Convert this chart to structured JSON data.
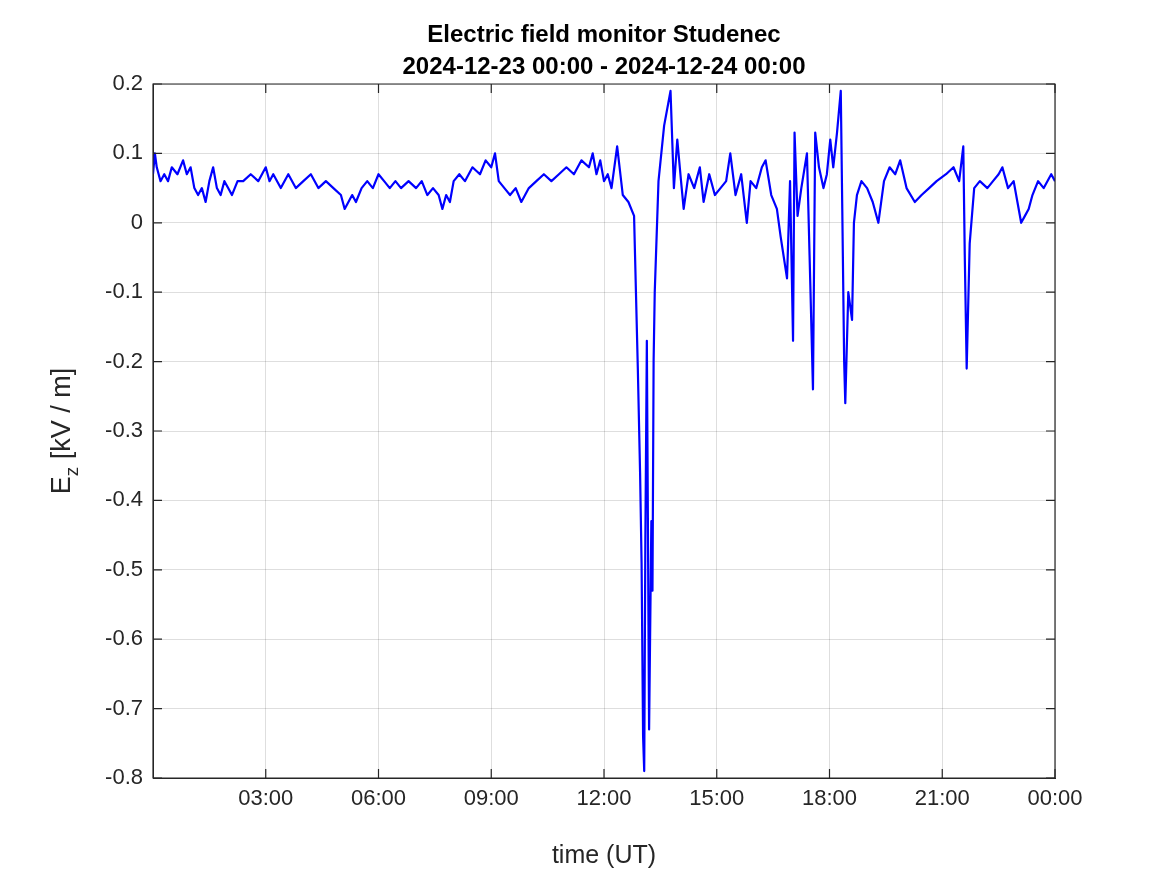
{
  "chart_data": {
    "type": "line",
    "title": "Electric field monitor Studenec",
    "subtitle": "2024-12-23 00:00 - 2024-12-24 00:00",
    "xlabel": "time (UT)",
    "ylabel": "E$_{z}$ [kV / m]",
    "x": [
      0,
      0.05,
      0.1,
      0.2,
      0.3,
      0.4,
      0.5,
      0.65,
      0.8,
      0.9,
      1.0,
      1.1,
      1.2,
      1.3,
      1.4,
      1.5,
      1.6,
      1.7,
      1.8,
      1.9,
      2.0,
      2.1,
      2.25,
      2.4,
      2.6,
      2.8,
      3.0,
      3.1,
      3.2,
      3.4,
      3.6,
      3.8,
      4.0,
      4.2,
      4.4,
      4.6,
      4.8,
      5.0,
      5.1,
      5.2,
      5.3,
      5.4,
      5.55,
      5.7,
      5.85,
      6.0,
      6.15,
      6.3,
      6.45,
      6.6,
      6.8,
      7.0,
      7.15,
      7.3,
      7.45,
      7.6,
      7.7,
      7.8,
      7.9,
      8.0,
      8.15,
      8.3,
      8.5,
      8.7,
      8.85,
      9.0,
      9.1,
      9.2,
      9.35,
      9.5,
      9.65,
      9.8,
      9.9,
      10.0,
      10.2,
      10.4,
      10.6,
      10.8,
      11.0,
      11.2,
      11.4,
      11.6,
      11.7,
      11.8,
      11.9,
      12.0,
      12.1,
      12.2,
      12.35,
      12.5,
      12.65,
      12.8,
      12.9,
      12.96,
      13.0,
      13.04,
      13.07,
      13.1,
      13.14,
      13.2,
      13.26,
      13.29,
      13.32,
      13.35,
      13.45,
      13.6,
      13.77,
      13.86,
      13.95,
      14.05,
      14.12,
      14.25,
      14.4,
      14.55,
      14.65,
      14.8,
      14.95,
      15.1,
      15.25,
      15.36,
      15.5,
      15.65,
      15.8,
      15.9,
      16.05,
      16.2,
      16.3,
      16.45,
      16.6,
      16.7,
      16.87,
      16.95,
      17.03,
      17.07,
      17.15,
      17.25,
      17.4,
      17.49,
      17.56,
      17.62,
      17.72,
      17.84,
      17.93,
      18.02,
      18.1,
      18.2,
      18.3,
      18.34,
      18.39,
      18.42,
      18.5,
      18.6,
      18.65,
      18.73,
      18.85,
      19.0,
      19.15,
      19.3,
      19.45,
      19.6,
      19.75,
      19.88,
      20.05,
      20.27,
      20.45,
      20.65,
      20.85,
      21.1,
      21.3,
      21.45,
      21.56,
      21.6,
      21.65,
      21.73,
      21.85,
      22.0,
      22.2,
      22.35,
      22.5,
      22.6,
      22.75,
      22.9,
      23.0,
      23.1,
      23.2,
      23.3,
      23.4,
      23.55,
      23.7,
      23.9,
      24
    ],
    "series": [
      {
        "color": "#0000ff",
        "values": [
          0.07,
          0.1,
          0.08,
          0.06,
          0.07,
          0.06,
          0.08,
          0.07,
          0.09,
          0.07,
          0.08,
          0.05,
          0.04,
          0.05,
          0.03,
          0.06,
          0.08,
          0.05,
          0.04,
          0.06,
          0.05,
          0.04,
          0.06,
          0.06,
          0.07,
          0.06,
          0.08,
          0.06,
          0.07,
          0.05,
          0.07,
          0.05,
          0.06,
          0.07,
          0.05,
          0.06,
          0.05,
          0.04,
          0.02,
          0.03,
          0.04,
          0.03,
          0.05,
          0.06,
          0.05,
          0.07,
          0.06,
          0.05,
          0.06,
          0.05,
          0.06,
          0.05,
          0.06,
          0.04,
          0.05,
          0.04,
          0.02,
          0.04,
          0.03,
          0.06,
          0.07,
          0.06,
          0.08,
          0.07,
          0.09,
          0.08,
          0.1,
          0.06,
          0.05,
          0.04,
          0.05,
          0.03,
          0.04,
          0.05,
          0.06,
          0.07,
          0.06,
          0.07,
          0.08,
          0.07,
          0.09,
          0.08,
          0.1,
          0.07,
          0.09,
          0.06,
          0.07,
          0.05,
          0.11,
          0.04,
          0.03,
          0.01,
          -0.21,
          -0.36,
          -0.49,
          -0.74,
          -0.79,
          -0.46,
          -0.17,
          -0.73,
          -0.43,
          -0.53,
          -0.2,
          -0.1,
          0.06,
          0.14,
          0.19,
          0.05,
          0.12,
          0.06,
          0.02,
          0.07,
          0.05,
          0.08,
          0.03,
          0.07,
          0.04,
          0.05,
          0.06,
          0.1,
          0.04,
          0.07,
          0.0,
          0.06,
          0.05,
          0.08,
          0.09,
          0.04,
          0.02,
          -0.02,
          -0.08,
          0.06,
          -0.17,
          0.13,
          0.01,
          0.05,
          0.1,
          -0.09,
          -0.24,
          0.13,
          0.08,
          0.05,
          0.07,
          0.12,
          0.08,
          0.13,
          0.19,
          0.02,
          -0.2,
          -0.26,
          -0.1,
          -0.14,
          0.0,
          0.04,
          0.06,
          0.05,
          0.03,
          0.0,
          0.06,
          0.08,
          0.07,
          0.09,
          0.05,
          0.03,
          0.04,
          0.05,
          0.06,
          0.07,
          0.08,
          0.06,
          0.11,
          -0.05,
          -0.21,
          -0.03,
          0.05,
          0.06,
          0.05,
          0.06,
          0.07,
          0.08,
          0.05,
          0.06,
          0.03,
          0.0,
          0.01,
          0.02,
          0.04,
          0.06,
          0.05,
          0.07,
          0.06
        ]
      }
    ],
    "xlim": [
      0,
      24
    ],
    "xticks": [
      {
        "value": 3,
        "label": "03:00"
      },
      {
        "value": 6,
        "label": "06:00"
      },
      {
        "value": 9,
        "label": "09:00"
      },
      {
        "value": 12,
        "label": "12:00"
      },
      {
        "value": 15,
        "label": "15:00"
      },
      {
        "value": 18,
        "label": "18:00"
      },
      {
        "value": 21,
        "label": "21:00"
      },
      {
        "value": 24,
        "label": "00:00"
      }
    ],
    "ylim": [
      -0.8,
      0.2
    ],
    "yticks": [
      -0.8,
      -0.7,
      -0.6,
      -0.5,
      -0.4,
      -0.3,
      -0.2,
      -0.1,
      0,
      0.1,
      0.2
    ],
    "grid": true,
    "legend": false,
    "marker": "none",
    "line_style": "solid"
  }
}
